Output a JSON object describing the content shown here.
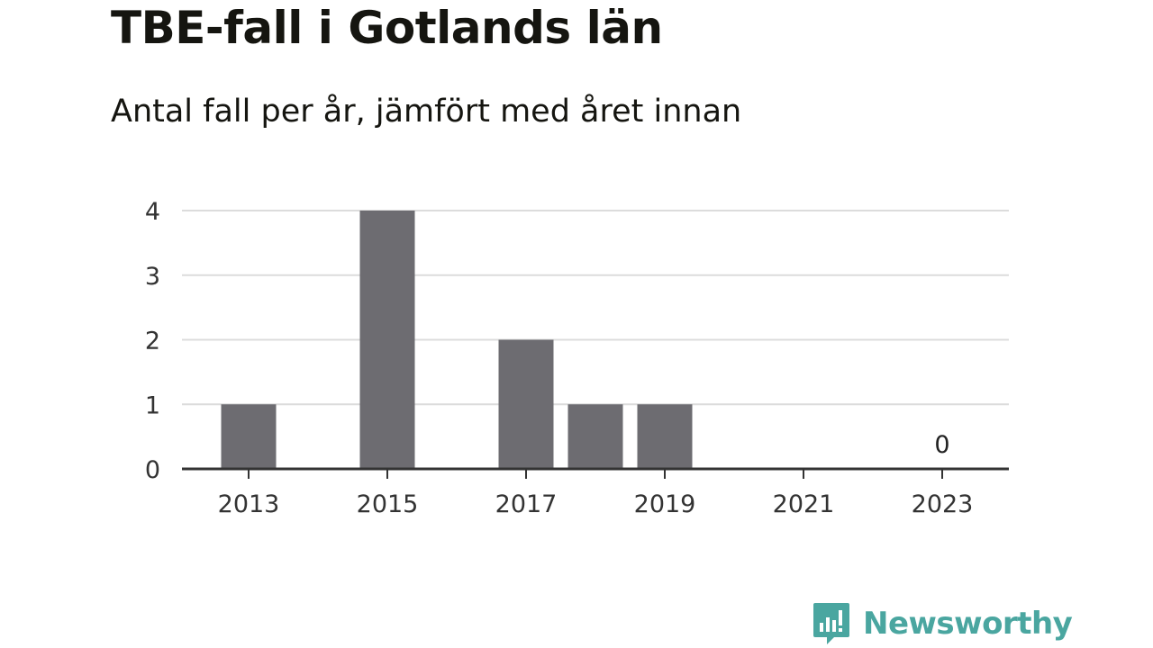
{
  "header": {
    "title": "TBE-fall i Gotlands län",
    "subtitle": "Antal fall per år, jämfört med året innan"
  },
  "chart_data": {
    "type": "bar",
    "title": "TBE-fall i Gotlands län",
    "subtitle": "Antal fall per år, jämfört med året innan",
    "x": [
      2013,
      2014,
      2015,
      2016,
      2017,
      2018,
      2019,
      2020,
      2021,
      2022,
      2023
    ],
    "values": [
      1,
      0,
      4,
      0,
      2,
      1,
      1,
      0,
      0,
      0,
      0
    ],
    "xticks": [
      "2013",
      "2015",
      "2017",
      "2019",
      "2021",
      "2023"
    ],
    "yticks": [
      "0",
      "1",
      "2",
      "3",
      "4"
    ],
    "ylim": [
      0,
      4
    ],
    "grid": "horizontal",
    "annotations": [
      {
        "x": 2023,
        "text": "0"
      }
    ],
    "bar_color": "#6d6c71",
    "grid_color": "#dcdcdc",
    "axis_color": "#333333"
  },
  "brand": {
    "name": "Newsworthy",
    "icon": "newsworthy-logo-icon",
    "color": "#4aa6a0"
  }
}
